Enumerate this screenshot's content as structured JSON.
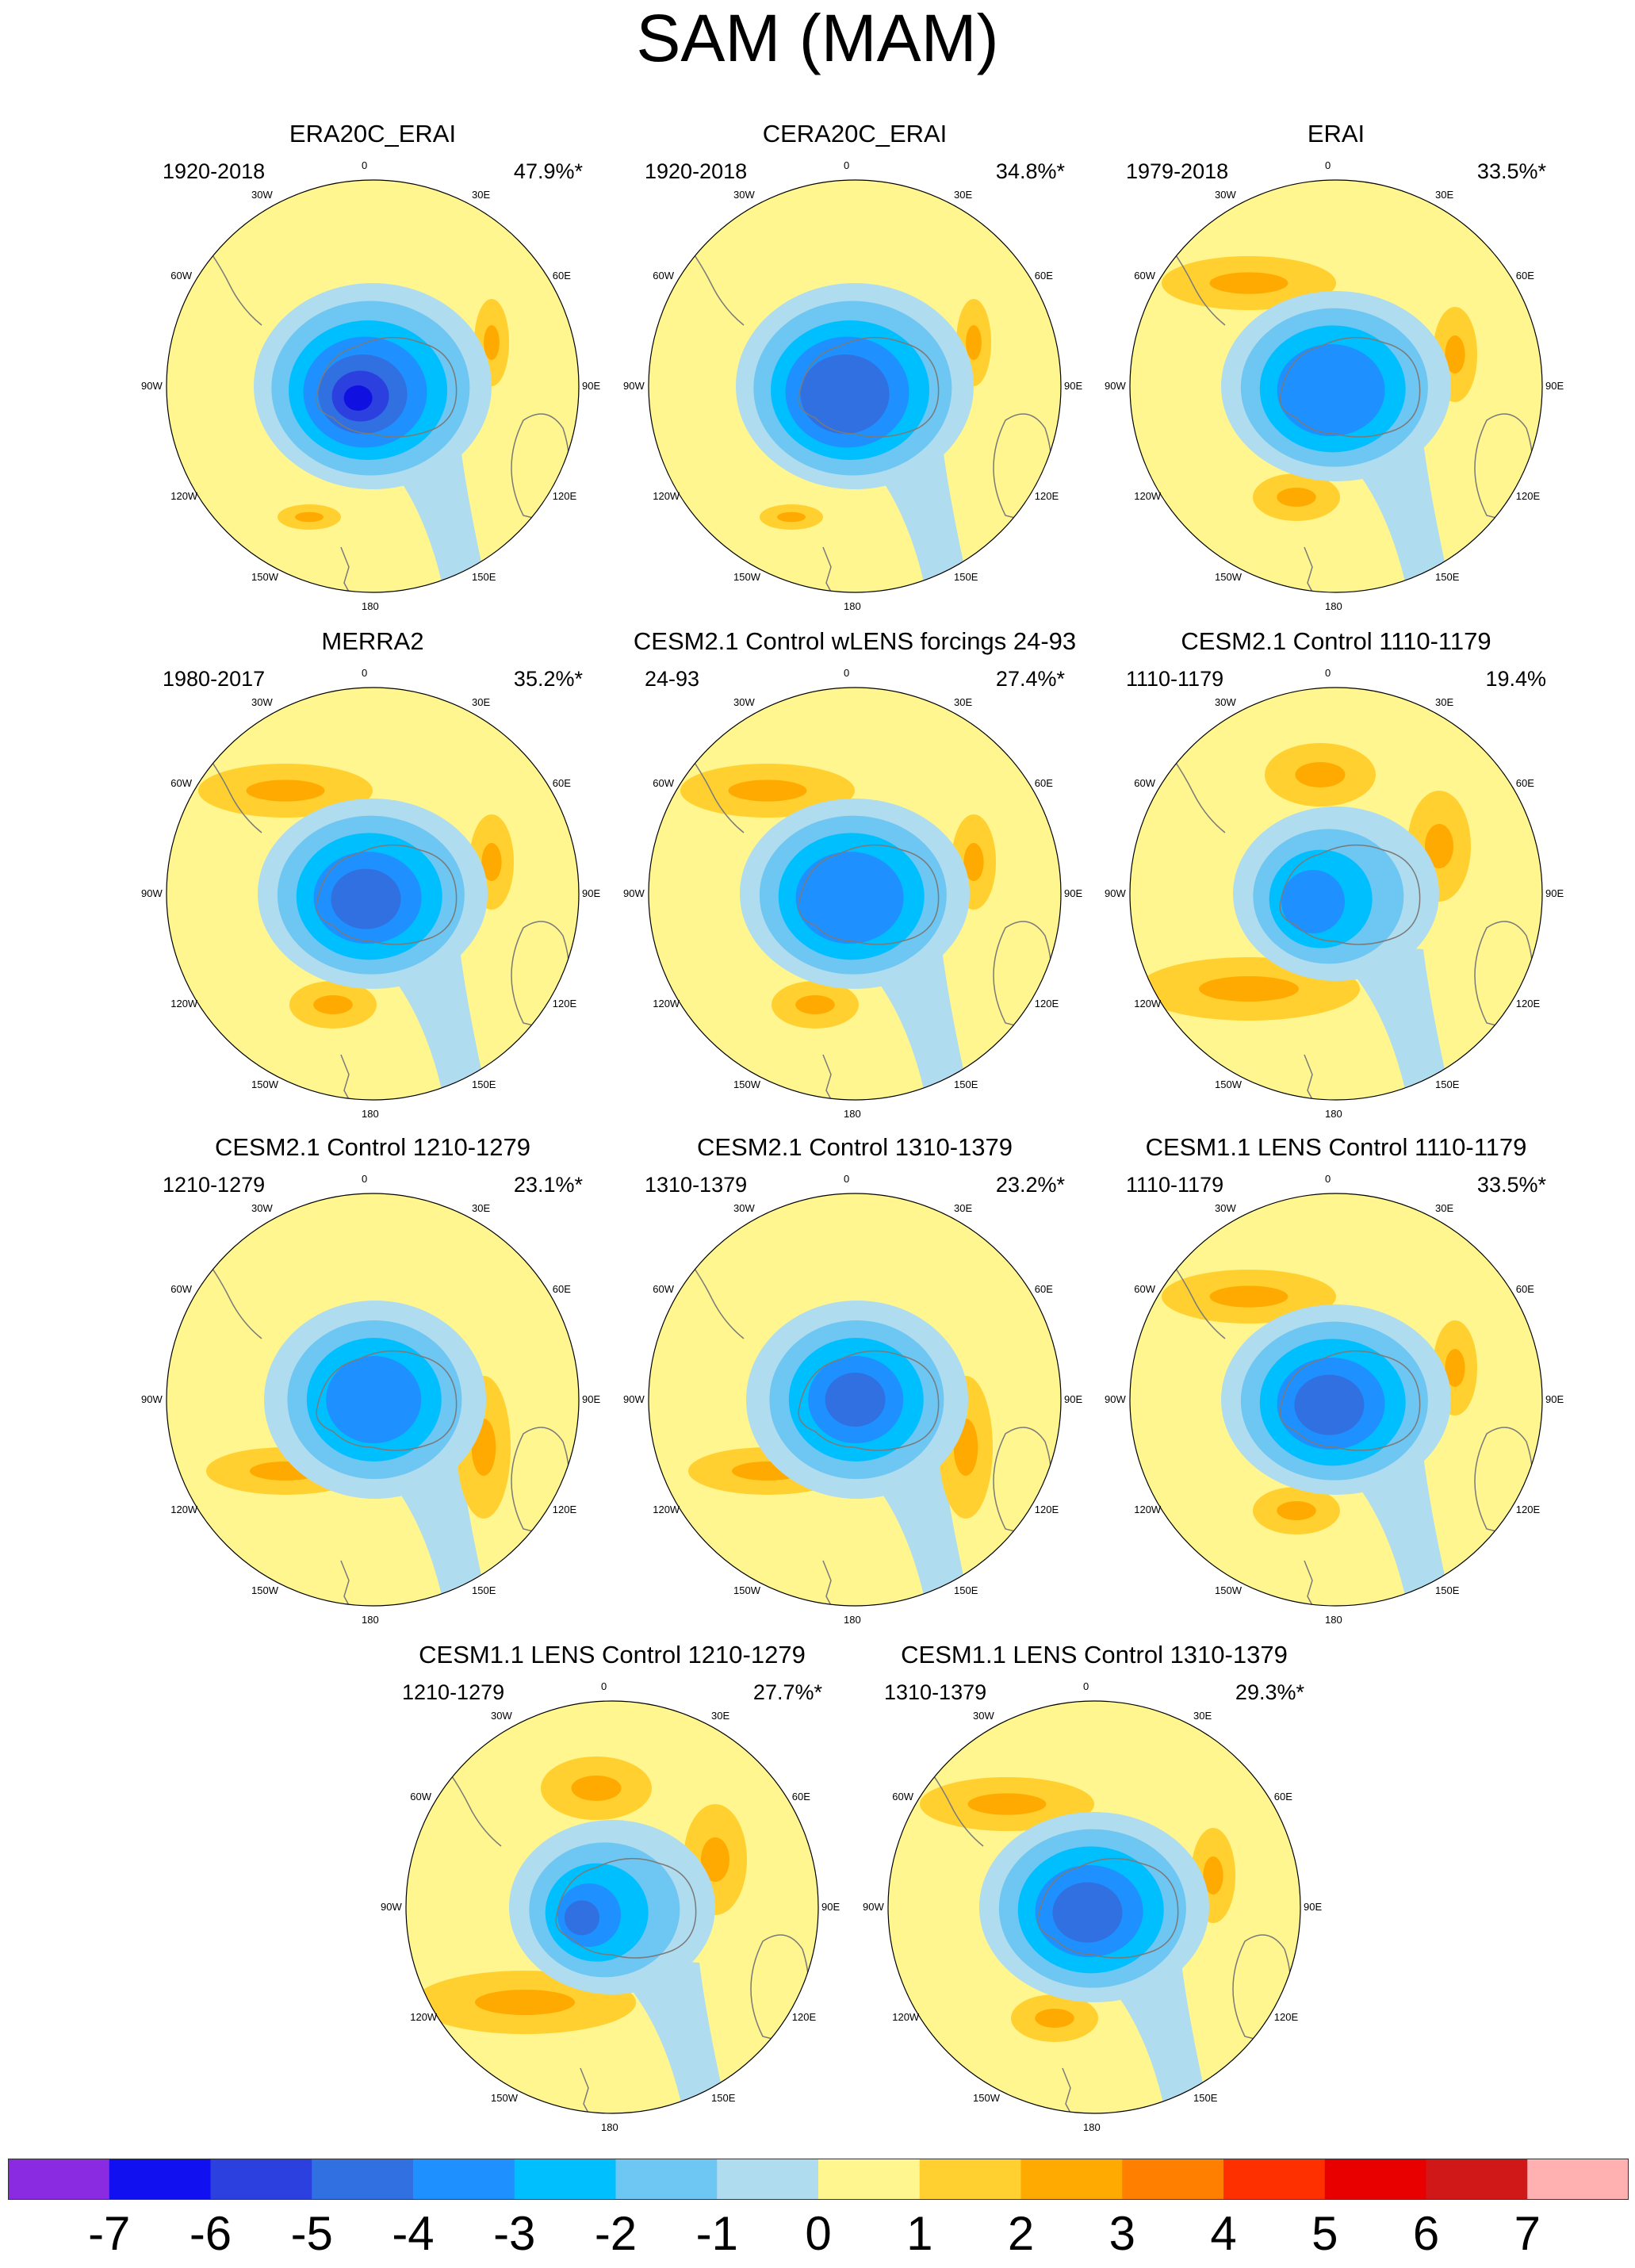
{
  "figure": {
    "title": "SAM (MAM)"
  },
  "longitude_labels": [
    "0",
    "30E",
    "60E",
    "90E",
    "120E",
    "150E",
    "180",
    "150W",
    "120W",
    "90W",
    "60W",
    "30W"
  ],
  "colors": {
    "ocean_zero": "#FFF68F",
    "pos1": "#FFD030",
    "pos2": "#FFAA00",
    "neg1": "#B0DCEF",
    "neg2": "#6EC6F2",
    "neg3": "#00BFFF",
    "neg4": "#1E90FF",
    "neg5": "#3070E0",
    "neg6": "#2C40E0",
    "neg7": "#1010E0",
    "coast": "#7a7a7a"
  },
  "panels": [
    {
      "title": "ERA20C_ERAI",
      "period": "1920-2018",
      "variance": "47.9%*",
      "min_level": -6,
      "pattern": "shifted"
    },
    {
      "title": "CERA20C_ERAI",
      "period": "1920-2018",
      "variance": "34.8%*",
      "min_level": -4,
      "pattern": "shifted"
    },
    {
      "title": "ERAI",
      "period": "1979-2018",
      "variance": "33.5%*",
      "min_level": -3,
      "pattern": "wave"
    },
    {
      "title": "MERRA2",
      "period": "1980-2017",
      "variance": "35.2%*",
      "min_level": -4,
      "pattern": "wave"
    },
    {
      "title": "CESM2.1 Control wLENS forcings 24-93",
      "period": "24-93",
      "variance": "27.4%*",
      "min_level": -3,
      "pattern": "wave"
    },
    {
      "title": "CESM2.1 Control 1110-1179",
      "period": "1110-1179",
      "variance": "19.4%",
      "min_level": -3,
      "pattern": "weak"
    },
    {
      "title": "CESM2.1 Control 1210-1279",
      "period": "1210-1279",
      "variance": "23.1%*",
      "min_level": -3,
      "pattern": "centered"
    },
    {
      "title": "CESM2.1 Control 1310-1379",
      "period": "1310-1379",
      "variance": "23.2%*",
      "min_level": -4,
      "pattern": "centered"
    },
    {
      "title": "CESM1.1 LENS Control 1110-1179",
      "period": "1110-1179",
      "variance": "33.5%*",
      "min_level": -4,
      "pattern": "wave"
    },
    {
      "title": "CESM1.1 LENS Control 1210-1279",
      "period": "1210-1279",
      "variance": "27.7%*",
      "min_level": -4,
      "pattern": "weak"
    },
    {
      "title": "CESM1.1 LENS Control 1310-1379",
      "period": "1310-1379",
      "variance": "29.3%*",
      "min_level": -4,
      "pattern": "wave"
    }
  ],
  "colorbar": {
    "labels": [
      "-7",
      "-6",
      "-5",
      "-4",
      "-3",
      "-2",
      "-1",
      "0",
      "1",
      "2",
      "3",
      "4",
      "5",
      "6",
      "7"
    ],
    "colors": [
      "#8A2BE2",
      "#1010F0",
      "#2C40E0",
      "#3070E0",
      "#1E90FF",
      "#00BFFF",
      "#6EC6F2",
      "#B0DCEF",
      "#FFF68F",
      "#FFD030",
      "#FFAA00",
      "#FF7F00",
      "#FF3000",
      "#E80000",
      "#D01818",
      "#FFB0B0"
    ]
  }
}
